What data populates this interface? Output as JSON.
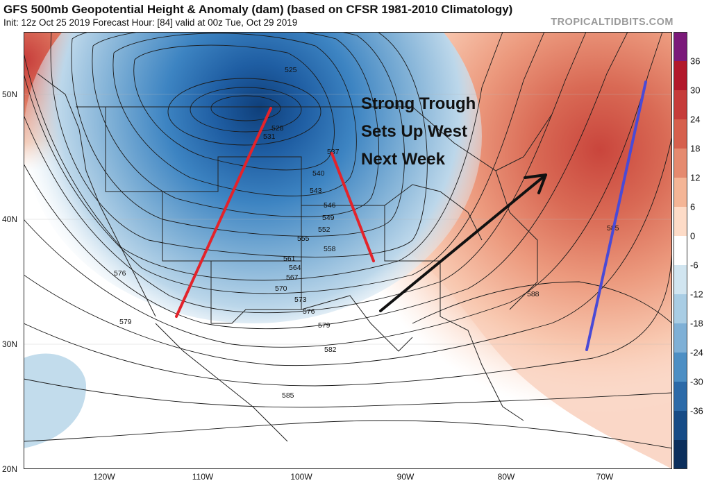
{
  "title": "GFS 500mb Geopotential Height & Anomaly (dam) (based on CFSR 1981-2010 Climatology)",
  "subtitle": "Init: 12z Oct 25 2019   Forecast Hour: [84]   valid at 00z Tue, Oct 29 2019",
  "watermark": "TROPICALTIDBITS.COM",
  "annotation": [
    "Strong Trough",
    "Sets Up West",
    "Next Week"
  ],
  "lat_labels": [
    "50N",
    "40N",
    "30N",
    "20N"
  ],
  "lon_labels": [
    "120W",
    "110W",
    "100W",
    "90W",
    "80W",
    "70W"
  ],
  "colorbar": {
    "ticks": [
      "36",
      "30",
      "24",
      "18",
      "12",
      "6",
      "0",
      "-6",
      "-12",
      "-18",
      "-24",
      "-30",
      "-36"
    ],
    "colors": [
      "#7b1a7a",
      "#b2182b",
      "#c63c3a",
      "#d6604d",
      "#e58a6f",
      "#f4b596",
      "#fddbc7",
      "#ffffff",
      "#d1e5f0",
      "#a9cde4",
      "#7fb0d6",
      "#4d8fc4",
      "#2c6aa8",
      "#164b86",
      "#0c2f5c"
    ]
  },
  "contour_labels": [
    "525",
    "528",
    "531",
    "537",
    "540",
    "543",
    "546",
    "549",
    "552",
    "555",
    "558",
    "561",
    "564",
    "567",
    "570",
    "573",
    "576",
    "576",
    "579",
    "579",
    "582",
    "585",
    "585",
    "588"
  ],
  "overlay_colors": {
    "red": "#e3232b",
    "blue": "#4a4ad6",
    "black": "#111111"
  }
}
